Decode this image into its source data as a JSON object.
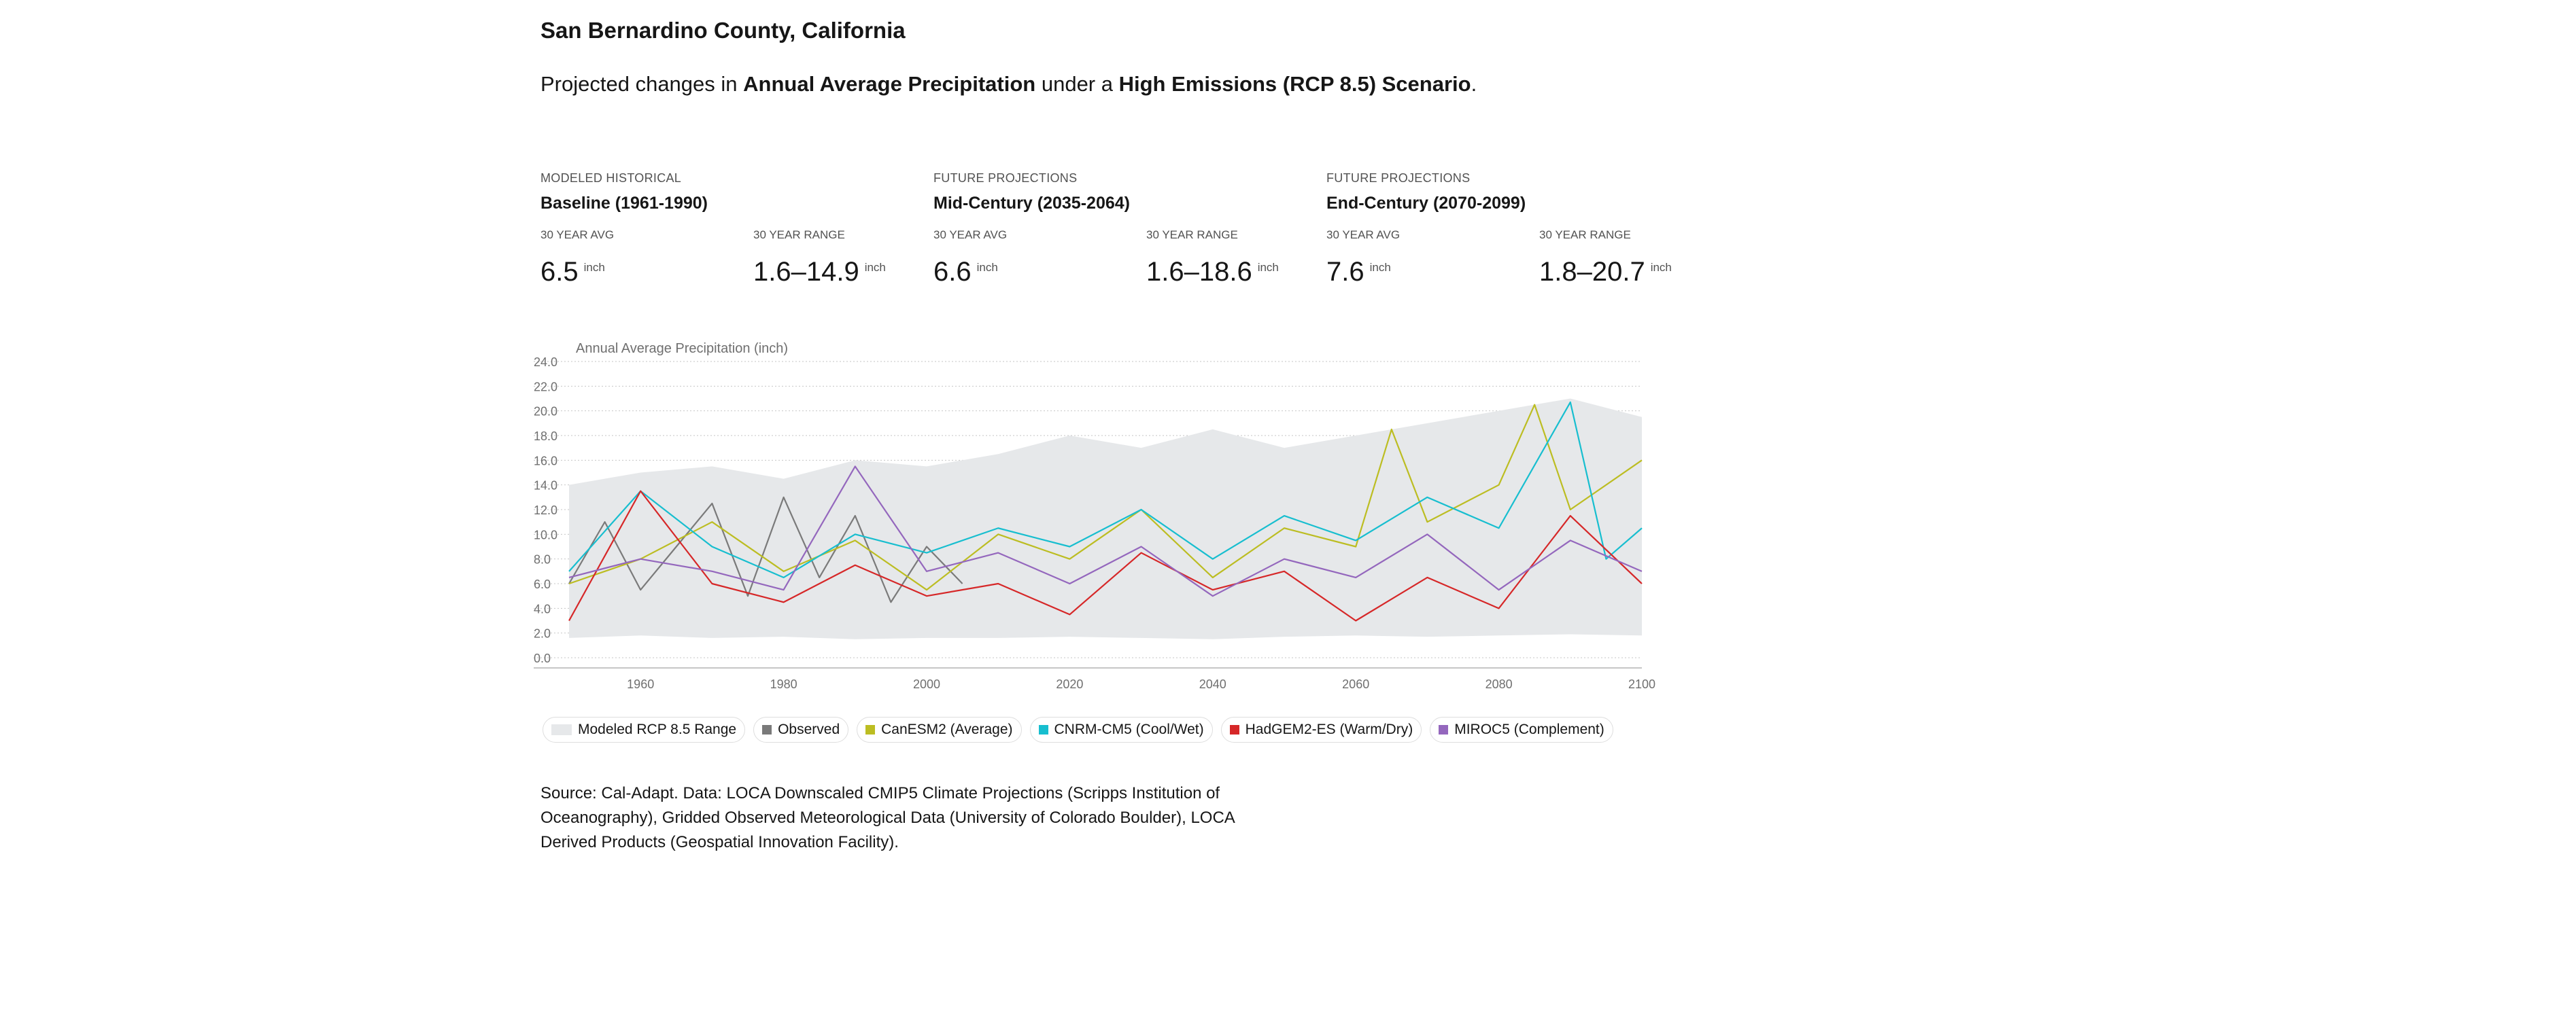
{
  "page": {
    "title": "San Bernardino County, California",
    "subtitle_pre": "Projected changes in ",
    "subtitle_var": "Annual Average Precipitation",
    "subtitle_mid": " under a ",
    "subtitle_scenario": "High Emissions (RCP 8.5) Scenario",
    "subtitle_post": "."
  },
  "periods": [
    {
      "kicker": "MODELED HISTORICAL",
      "name": "Baseline (1961-1990)",
      "avg_label": "30 YEAR AVG",
      "avg_value": "6.5",
      "avg_unit": "inch",
      "range_label": "30 YEAR RANGE",
      "range_value": "1.6–14.9",
      "range_unit": "inch"
    },
    {
      "kicker": "FUTURE PROJECTIONS",
      "name": "Mid-Century (2035-2064)",
      "avg_label": "30 YEAR AVG",
      "avg_value": "6.6",
      "avg_unit": "inch",
      "range_label": "30 YEAR RANGE",
      "range_value": "1.6–18.6",
      "range_unit": "inch"
    },
    {
      "kicker": "FUTURE PROJECTIONS",
      "name": "End-Century (2070-2099)",
      "avg_label": "30 YEAR AVG",
      "avg_value": "7.6",
      "avg_unit": "inch",
      "range_label": "30 YEAR RANGE",
      "range_value": "1.8–20.7",
      "range_unit": "inch"
    }
  ],
  "legend": [
    {
      "label": "Modeled RCP 8.5 Range",
      "color": "#e6e8ea",
      "kind": "range"
    },
    {
      "label": "Observed",
      "color": "#7a7a7a",
      "kind": "line"
    },
    {
      "label": "CanESM2 (Average)",
      "color": "#bcbd22",
      "kind": "line"
    },
    {
      "label": "CNRM-CM5 (Cool/Wet)",
      "color": "#17becf",
      "kind": "line"
    },
    {
      "label": "HadGEM2-ES (Warm/Dry)",
      "color": "#d62728",
      "kind": "line"
    },
    {
      "label": "MIROC5 (Complement)",
      "color": "#9467bd",
      "kind": "line"
    }
  ],
  "source": "Source: Cal-Adapt. Data: LOCA Downscaled CMIP5 Climate Projections (Scripps Institution of Oceanography), Gridded Observed Meteorological Data (University of Colorado Boulder), LOCA Derived Products (Geospatial Innovation Facility).",
  "chart_data": {
    "type": "line",
    "title": "Annual Average Precipitation (inch)",
    "xlim": [
      1950,
      2100
    ],
    "ylim": [
      0,
      24
    ],
    "x_ticks": [
      1960,
      1980,
      2000,
      2020,
      2040,
      2060,
      2080,
      2100
    ],
    "y_ticks": [
      "0.0",
      "2.0",
      "4.0",
      "6.0",
      "8.0",
      "10.0",
      "12.0",
      "14.0",
      "16.0",
      "18.0",
      "20.0",
      "22.0",
      "24.0"
    ],
    "grid": "horizontal dotted",
    "legend_placement": "bottom",
    "range_band": {
      "name": "Modeled RCP 8.5 Range",
      "x": [
        1950,
        1960,
        1970,
        1980,
        1990,
        2000,
        2010,
        2020,
        2030,
        2040,
        2050,
        2060,
        2070,
        2080,
        2090,
        2100
      ],
      "low": [
        1.6,
        1.8,
        1.6,
        1.7,
        1.5,
        1.6,
        1.6,
        1.7,
        1.6,
        1.5,
        1.7,
        1.8,
        1.7,
        1.8,
        1.9,
        1.8
      ],
      "high": [
        14.0,
        15.0,
        15.5,
        14.5,
        16.0,
        15.5,
        16.5,
        18.0,
        17.0,
        18.5,
        17.0,
        18.0,
        19.0,
        20.0,
        21.0,
        19.5
      ]
    },
    "series": [
      {
        "name": "Observed",
        "x": [
          1950,
          1955,
          1960,
          1965,
          1970,
          1975,
          1980,
          1985,
          1990,
          1995,
          2000,
          2005
        ],
        "values": [
          6.0,
          11.0,
          5.5,
          9.0,
          12.5,
          5.0,
          13.0,
          6.5,
          11.5,
          4.5,
          9.0,
          6.0
        ]
      },
      {
        "name": "CanESM2 (Average)",
        "x": [
          1950,
          1960,
          1970,
          1980,
          1990,
          2000,
          2010,
          2020,
          2030,
          2040,
          2050,
          2060,
          2065,
          2070,
          2080,
          2085,
          2090,
          2100
        ],
        "values": [
          6.0,
          8.0,
          11.0,
          7.0,
          9.5,
          5.5,
          10.0,
          8.0,
          12.0,
          6.5,
          10.5,
          9.0,
          18.5,
          11.0,
          14.0,
          20.5,
          12.0,
          16.0
        ]
      },
      {
        "name": "CNRM-CM5 (Cool/Wet)",
        "x": [
          1950,
          1960,
          1970,
          1980,
          1990,
          2000,
          2010,
          2020,
          2030,
          2040,
          2050,
          2060,
          2070,
          2080,
          2090,
          2095,
          2100
        ],
        "values": [
          7.0,
          13.5,
          9.0,
          6.5,
          10.0,
          8.5,
          10.5,
          9.0,
          12.0,
          8.0,
          11.5,
          9.5,
          13.0,
          10.5,
          20.7,
          8.0,
          10.5
        ]
      },
      {
        "name": "HadGEM2-ES (Warm/Dry)",
        "x": [
          1950,
          1960,
          1970,
          1980,
          1990,
          2000,
          2010,
          2020,
          2030,
          2040,
          2050,
          2060,
          2070,
          2080,
          2090,
          2100
        ],
        "values": [
          3.0,
          13.5,
          6.0,
          4.5,
          7.5,
          5.0,
          6.0,
          3.5,
          8.5,
          5.5,
          7.0,
          3.0,
          6.5,
          4.0,
          11.5,
          6.0
        ]
      },
      {
        "name": "MIROC5 (Complement)",
        "x": [
          1950,
          1960,
          1970,
          1980,
          1990,
          2000,
          2010,
          2020,
          2030,
          2040,
          2050,
          2060,
          2070,
          2080,
          2090,
          2100
        ],
        "values": [
          6.5,
          8.0,
          7.0,
          5.5,
          15.5,
          7.0,
          8.5,
          6.0,
          9.0,
          5.0,
          8.0,
          6.5,
          10.0,
          5.5,
          9.5,
          7.0
        ]
      }
    ]
  }
}
